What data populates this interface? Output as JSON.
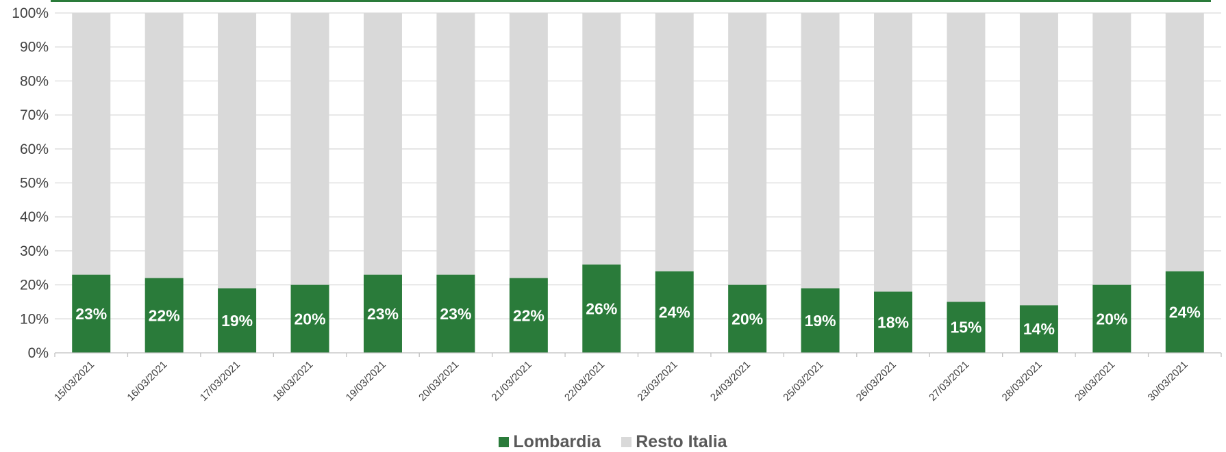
{
  "chart_data": {
    "type": "bar",
    "stacked": true,
    "categories": [
      "15/03/2021",
      "16/03/2021",
      "17/03/2021",
      "18/03/2021",
      "19/03/2021",
      "20/03/2021",
      "21/03/2021",
      "22/03/2021",
      "23/03/2021",
      "24/03/2021",
      "25/03/2021",
      "26/03/2021",
      "27/03/2021",
      "28/03/2021",
      "29/03/2021",
      "30/03/2021"
    ],
    "series": [
      {
        "name": "Lombardia",
        "color": "#2a7b3a",
        "values": [
          23,
          22,
          19,
          20,
          23,
          23,
          22,
          26,
          24,
          20,
          19,
          18,
          15,
          14,
          20,
          24
        ],
        "labels": [
          "23%",
          "22%",
          "19%",
          "20%",
          "23%",
          "23%",
          "22%",
          "26%",
          "24%",
          "20%",
          "19%",
          "18%",
          "15%",
          "14%",
          "20%",
          "24%"
        ]
      },
      {
        "name": "Resto Italia",
        "color": "#d9d9d9",
        "values": [
          77,
          78,
          81,
          80,
          77,
          77,
          78,
          74,
          76,
          80,
          81,
          82,
          85,
          86,
          80,
          76
        ]
      }
    ],
    "ylim": [
      0,
      100
    ],
    "yticks": [
      "0%",
      "10%",
      "20%",
      "30%",
      "40%",
      "50%",
      "60%",
      "70%",
      "80%",
      "90%",
      "100%"
    ],
    "grid": true,
    "legend_position": "bottom"
  }
}
